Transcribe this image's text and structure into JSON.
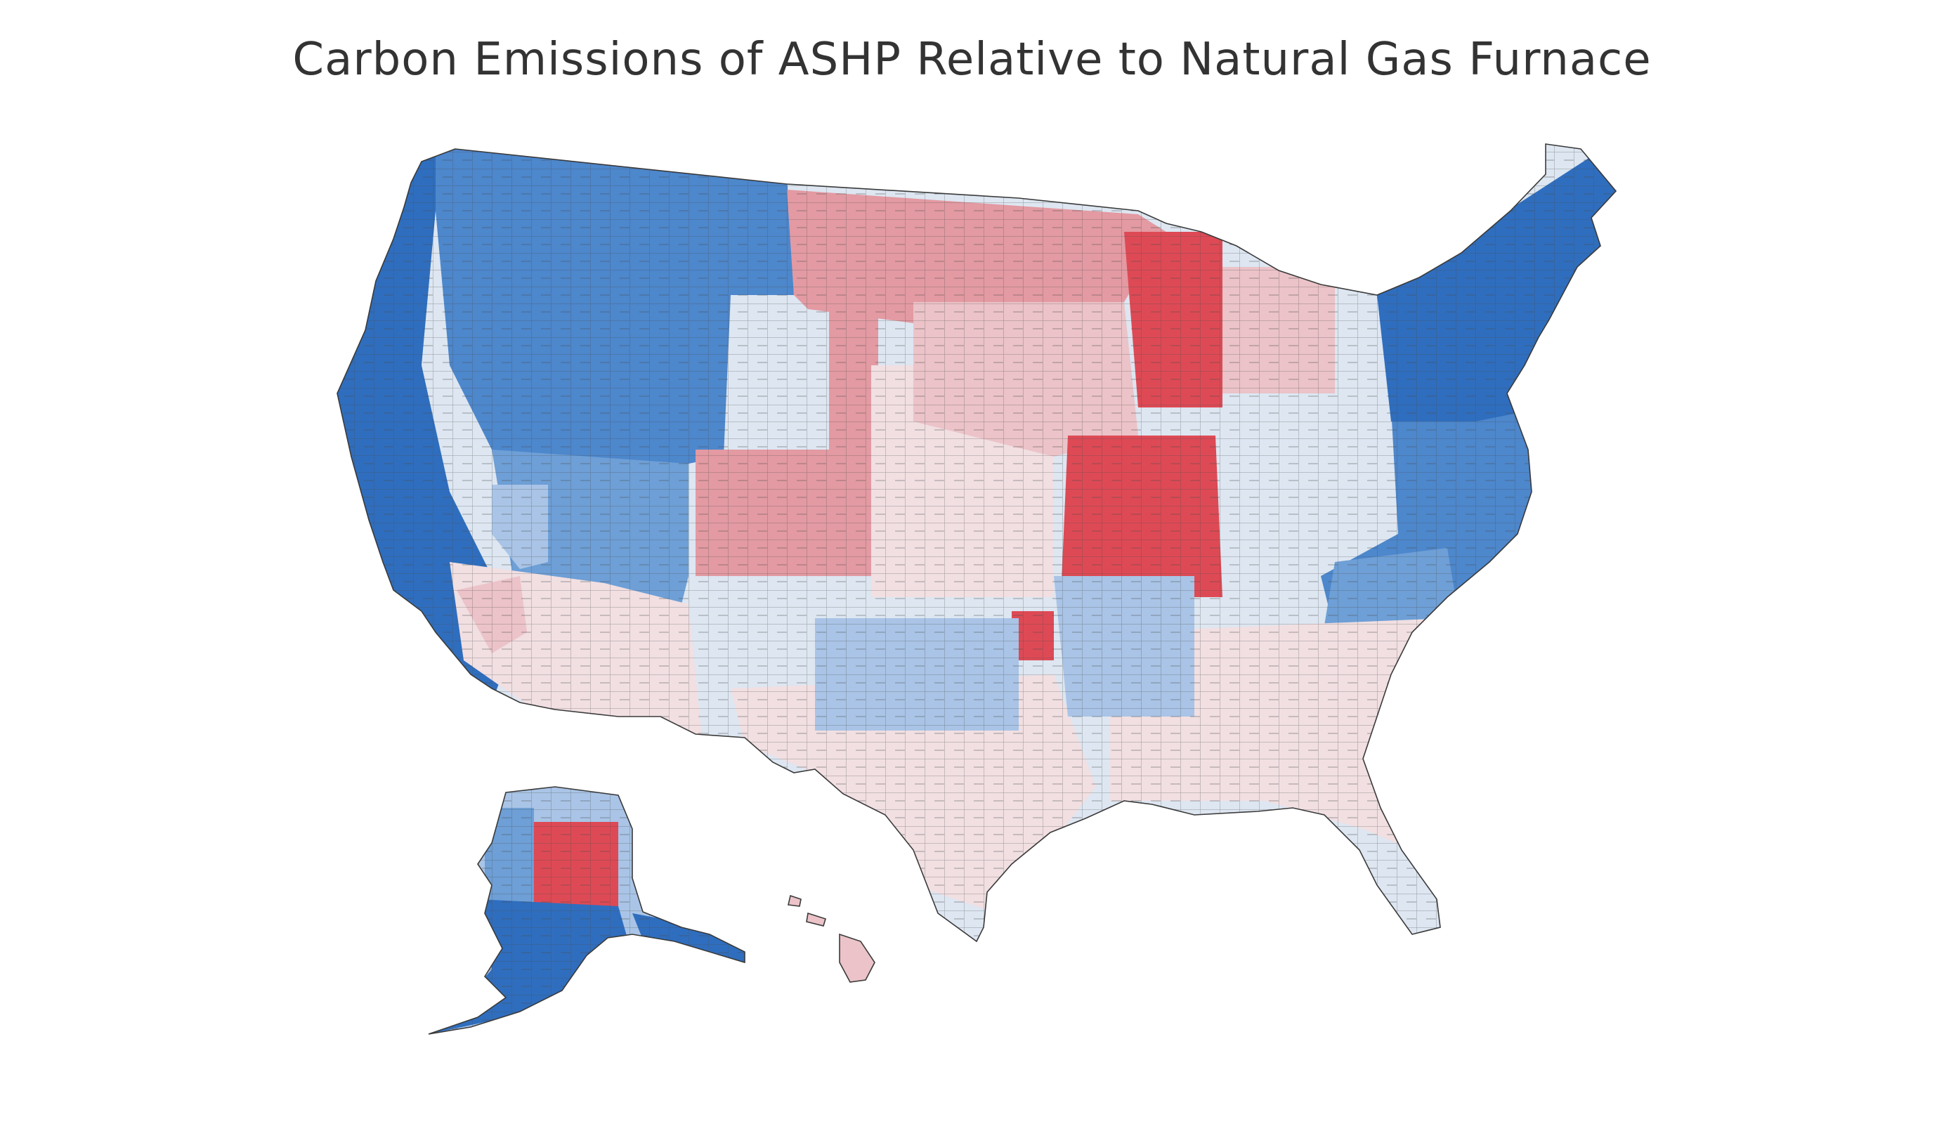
{
  "map": {
    "title": "Carbon Emissions of ASHP Relative to Natural Gas Furnace"
  },
  "colors": {
    "much_lower": "#2f6ebe",
    "lower": "#4d87cc",
    "somewhat_lower": "#6e9fd6",
    "slightly_lower": "#a9c4e6",
    "near_equal_blue": "#dde6f1",
    "near_equal_red": "#f1dfe2",
    "slightly_higher": "#ebc3c8",
    "higher": "#e39aa2",
    "much_higher": "#dd4a55",
    "border": "#3a3a3a"
  }
}
